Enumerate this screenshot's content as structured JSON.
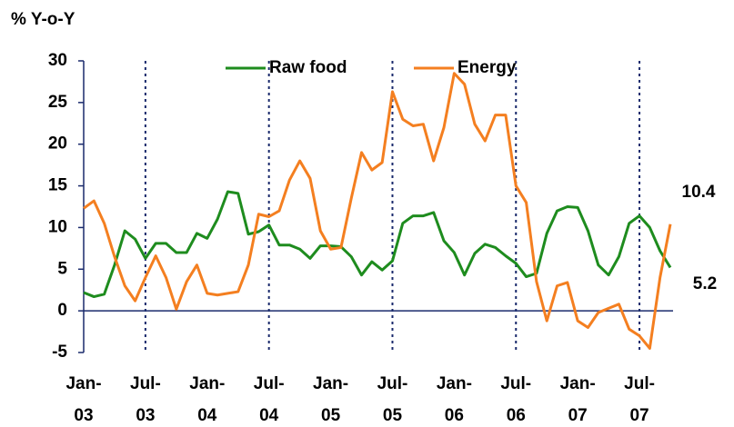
{
  "chart_data": {
    "type": "line",
    "y_label": "% Y-o-Y",
    "categories": [
      "Jan-03",
      null,
      null,
      null,
      null,
      null,
      "Jul-03",
      null,
      null,
      null,
      null,
      null,
      "Jan-04",
      null,
      null,
      null,
      null,
      null,
      "Jul-04",
      null,
      null,
      null,
      null,
      null,
      "Jan-05",
      null,
      null,
      null,
      null,
      null,
      "Jul-05",
      null,
      null,
      null,
      null,
      null,
      "Jan-06",
      null,
      null,
      null,
      null,
      null,
      "Jul-06",
      null,
      null,
      null,
      null,
      null,
      "Jan-07",
      null,
      null,
      null,
      null,
      null,
      "Jul-07",
      null,
      null,
      null
    ],
    "series": [
      {
        "name": "Raw food",
        "color": "#1e8c1e",
        "values": [
          2.2,
          1.7,
          2.0,
          5.5,
          9.6,
          8.6,
          6.3,
          8.1,
          8.1,
          7.0,
          7.0,
          9.3,
          8.7,
          11,
          14.3,
          14.1,
          9.2,
          9.5,
          10.3,
          7.9,
          7.9,
          7.4,
          6.3,
          7.8,
          7.8,
          7.7,
          6.5,
          4.3,
          5.9,
          4.9,
          6.0,
          10.5,
          11.4,
          11.4,
          11.8,
          8.4,
          7.0,
          4.3,
          6.9,
          8.0,
          7.6,
          6.6,
          5.7,
          4.1,
          4.5,
          9.3,
          12.0,
          12.5,
          12.4,
          9.6,
          5.5,
          4.3,
          6.5,
          10.5,
          11.4,
          10.0,
          7.2,
          5.2
        ]
      },
      {
        "name": "Energy",
        "color": "#f47f20",
        "values": [
          12.3,
          13.2,
          10.5,
          6.5,
          3.0,
          1.2,
          4.0,
          6.6,
          4.0,
          0.2,
          3.5,
          5.5,
          2.1,
          1.9,
          2.1,
          2.3,
          5.5,
          11.6,
          11.3,
          12.0,
          15.7,
          18.0,
          15.9,
          9.6,
          7.4,
          7.6,
          13.5,
          19.0,
          16.9,
          17.8,
          26.3,
          23.0,
          22.2,
          22.4,
          18.0,
          22.0,
          28.5,
          27.2,
          22.4,
          20.4,
          23.5,
          23.5,
          15.0,
          13.0,
          3.5,
          -1.2,
          3.0,
          3.4,
          -1.2,
          -2.0,
          -0.2,
          0.3,
          0.8,
          -2.2,
          -3.0,
          -4.5,
          4.0,
          10.4
        ]
      }
    ],
    "annotations": [
      {
        "text": "10.4",
        "color": "#f47f20"
      },
      {
        "text": "5.2",
        "color": "#1e8c1e"
      }
    ],
    "ylim": [
      -5,
      30
    ],
    "yticks": [
      -5,
      0,
      5,
      10,
      15,
      20,
      25,
      30
    ]
  }
}
